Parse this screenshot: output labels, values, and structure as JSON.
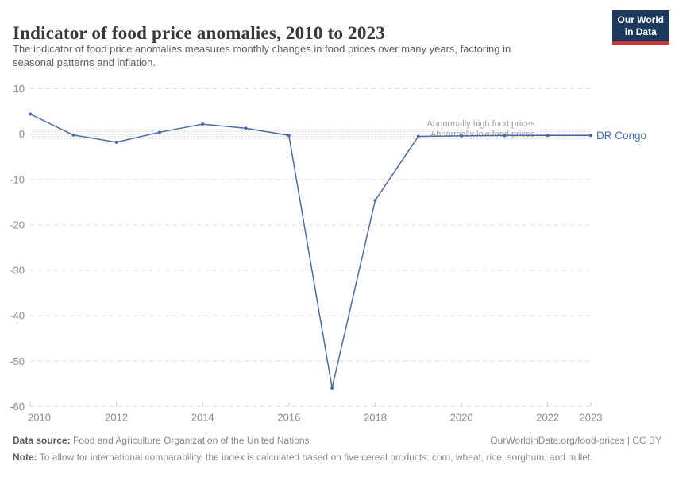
{
  "header": {
    "title": "Indicator of food price anomalies, 2010 to 2023",
    "subtitle_line1": "The indicator of food price anomalies measures monthly changes in food prices over many years, factoring in",
    "subtitle_line2": "seasonal patterns and inflation."
  },
  "logo": {
    "line1": "Our World",
    "line2": "in Data"
  },
  "chart_data": {
    "type": "line",
    "title": "Indicator of food price anomalies, 2010 to 2023",
    "xlabel": "",
    "ylabel": "",
    "x": [
      2010,
      2011,
      2012,
      2013,
      2014,
      2015,
      2016,
      2017,
      2018,
      2019,
      2020,
      2021,
      2022,
      2023
    ],
    "series": [
      {
        "name": "DR Congo",
        "values": [
          4.4,
          -0.2,
          -1.8,
          0.4,
          2.2,
          1.3,
          -0.3,
          -55.9,
          -14.6,
          -0.5,
          -0.4,
          -0.3,
          -0.3,
          -0.3
        ]
      }
    ],
    "xlim": [
      2010,
      2023
    ],
    "ylim": [
      -60,
      10
    ],
    "xticks": [
      2010,
      2012,
      2014,
      2016,
      2018,
      2020,
      2022,
      2023
    ],
    "yticks": [
      10,
      0,
      -10,
      -20,
      -30,
      -40,
      -50,
      -60
    ],
    "grid": "horizontal-dashed",
    "zero_line": true,
    "legend_position": "end-of-line-label",
    "threshold_band": {
      "from": 1.1,
      "to": -1.1,
      "style": "dotted"
    },
    "annotations": [
      {
        "text": "Abnormally high food prices",
        "x": 2021.7,
        "y": 1.7,
        "anchor": "end"
      },
      {
        "text": "Abnormally low food prices",
        "x": 2021.7,
        "y": -0.6,
        "anchor": "end"
      }
    ]
  },
  "footer": {
    "datasource_label": "Data source:",
    "datasource": "Food and Agriculture Organization of the United Nations",
    "link": "OurWorldinData.org/food-prices | CC BY",
    "note_label": "Note:",
    "note": "To allow for international comparability, the index is calculated based on five cereal products: corn, wheat, rice, sorghum, and millet."
  },
  "colors": {
    "logo_navy": "#1d3a5e",
    "logo_red": "#c53a2f",
    "line": "#4a6ba8",
    "series_label": "#3d6ab5",
    "grid": "#dedede",
    "zero_line": "#9a9a9a",
    "axis_text": "#8c8c8c",
    "tick": "#c9c9c9",
    "annotation_text": "#9e9e9e",
    "band_dot": "#c9c9c9"
  }
}
